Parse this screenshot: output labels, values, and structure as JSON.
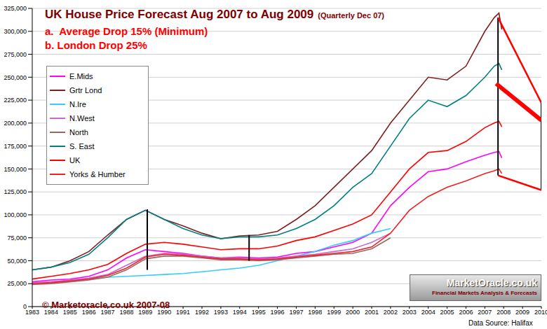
{
  "chart_data": {
    "type": "line",
    "title": "UK House Price Forecast Aug 2007 to Aug 2009",
    "subtitle": "(Quarterly Dec 07)",
    "annotations": [
      "a.  Average Drop 15% (Minimum)",
      "b. London Drop 25%",
      "© Marketoracle.co.uk 2007-08",
      "Data Source: Halifax",
      "MarketOracle.co.uk",
      "Financial Markets Analysis & Forecasts"
    ],
    "x": [
      1983,
      1984,
      1985,
      1986,
      1987,
      1988,
      1989,
      1990,
      1991,
      1992,
      1993,
      1994,
      1995,
      1996,
      1997,
      1998,
      1999,
      2000,
      2001,
      2002,
      2003,
      2004,
      2005,
      2006,
      2007,
      2007.5,
      2007.75,
      2007.9
    ],
    "series": [
      {
        "name": "E.Mids",
        "color": "#ff00ff",
        "values": [
          27000,
          29000,
          30000,
          33000,
          40000,
          53000,
          62000,
          60000,
          58000,
          55000,
          53000,
          54000,
          53000,
          54000,
          58000,
          60000,
          65000,
          70000,
          80000,
          110000,
          130000,
          147000,
          150000,
          158000,
          165000,
          168000,
          169000,
          162000
        ]
      },
      {
        "name": "Grtr Lond",
        "color": "#7f1f1f",
        "values": [
          40000,
          43000,
          50000,
          60000,
          78000,
          95000,
          105000,
          95000,
          88000,
          80000,
          74000,
          77000,
          78000,
          82000,
          95000,
          110000,
          130000,
          150000,
          170000,
          200000,
          225000,
          250000,
          247000,
          262000,
          300000,
          315000,
          320000,
          302000
        ]
      },
      {
        "name": "N.Ire",
        "color": "#33ccff",
        "values": [
          25000,
          27000,
          28000,
          30000,
          32000,
          33000,
          34000,
          35000,
          36000,
          38000,
          40000,
          42000,
          45000,
          50000,
          55000,
          60000,
          67000,
          72000,
          80000,
          85000,
          null,
          null,
          null,
          null,
          null,
          null,
          null,
          null
        ]
      },
      {
        "name": "N.West",
        "color": "#cc66cc",
        "values": [
          26000,
          27000,
          29000,
          31000,
          35000,
          45000,
          55000,
          58000,
          57000,
          55000,
          53000,
          53000,
          52000,
          53000,
          55000,
          57000,
          60000,
          63000,
          70000,
          80000,
          null,
          null,
          null,
          null,
          null,
          null,
          null,
          null
        ]
      },
      {
        "name": "North",
        "color": "#996666",
        "values": [
          24000,
          25000,
          27000,
          29000,
          32000,
          40000,
          52000,
          55000,
          55000,
          53000,
          51000,
          51000,
          50000,
          51000,
          53000,
          55000,
          57000,
          58000,
          63000,
          75000,
          null,
          null,
          null,
          null,
          null,
          null,
          null,
          null
        ]
      },
      {
        "name": "S. East",
        "color": "#008080",
        "values": [
          40000,
          43000,
          48000,
          57000,
          75000,
          95000,
          105000,
          95000,
          85000,
          78000,
          74000,
          76000,
          76000,
          78000,
          85000,
          95000,
          110000,
          130000,
          145000,
          175000,
          205000,
          225000,
          218000,
          230000,
          250000,
          262000,
          265000,
          258000
        ]
      },
      {
        "name": "UK",
        "color": "#ff0000",
        "values": [
          30000,
          33000,
          36000,
          40000,
          46000,
          58000,
          68000,
          70000,
          68000,
          65000,
          62000,
          63000,
          63000,
          66000,
          72000,
          76000,
          83000,
          90000,
          100000,
          125000,
          150000,
          168000,
          170000,
          180000,
          195000,
          200000,
          202000,
          196000
        ]
      },
      {
        "name": "Yorks & Humber",
        "color": "#ee2222",
        "values": [
          25000,
          26000,
          28000,
          30000,
          34000,
          42000,
          54000,
          57000,
          56000,
          54000,
          52000,
          52000,
          51000,
          52000,
          54000,
          56000,
          58000,
          60000,
          65000,
          80000,
          105000,
          120000,
          130000,
          137000,
          145000,
          148000,
          150000,
          145000
        ]
      }
    ],
    "forecast_lines": [
      {
        "color": "#ff0000",
        "line_style": "solid",
        "x": [
          2007.7,
          2010
        ],
        "values": [
          315000,
          222000
        ]
      },
      {
        "color": "#ff0000",
        "line_style": "solid",
        "x": [
          2007.7,
          2010
        ],
        "values": [
          143000,
          127000
        ]
      },
      {
        "color": "#ff0000",
        "line_style": "bold",
        "x": [
          2007.6,
          2010
        ],
        "values": [
          243000,
          203000
        ]
      }
    ],
    "vertical_lines": [
      {
        "color": "#000000",
        "x": [
          1989.1,
          1989.1
        ],
        "values": [
          40000,
          106000
        ]
      },
      {
        "color": "#000000",
        "x": [
          1994.5,
          1994.5
        ],
        "values": [
          50000,
          78000
        ]
      },
      {
        "color": "#000000",
        "x": [
          2007.7,
          2007.7
        ],
        "values": [
          143000,
          315000
        ]
      },
      {
        "color": "#000000",
        "x": [
          2010,
          2010
        ],
        "values": [
          127000,
          222000
        ]
      }
    ],
    "xlim": [
      1983,
      2010
    ],
    "xticks": [
      1983,
      1984,
      1985,
      1986,
      1987,
      1988,
      1989,
      1990,
      1991,
      1992,
      1993,
      1994,
      1995,
      1996,
      1997,
      1998,
      1999,
      2000,
      2001,
      2002,
      2003,
      2004,
      2005,
      2006,
      2007,
      2008,
      2009,
      2010
    ],
    "ylim": [
      0,
      325000
    ],
    "yticks": [
      0,
      {
        "value": 25000,
        "label": "25,000"
      },
      {
        "value": 50000,
        "label": "50,000"
      },
      {
        "value": 75000,
        "label": "75,000"
      },
      {
        "value": 100000,
        "label": "100,000"
      },
      {
        "value": 125000,
        "label": "125,000"
      },
      {
        "value": 150000,
        "label": "150,000"
      },
      {
        "value": 175000,
        "label": "175,000"
      },
      {
        "value": 200000,
        "label": "200,000"
      },
      {
        "value": 225000,
        "label": "225,000"
      },
      {
        "value": 250000,
        "label": "250,000"
      },
      {
        "value": 275000,
        "label": "275,000"
      },
      {
        "value": 300000,
        "label": "300,000"
      },
      {
        "value": 325000,
        "label": "325,000"
      }
    ],
    "grid": true,
    "legend": "upper left"
  }
}
